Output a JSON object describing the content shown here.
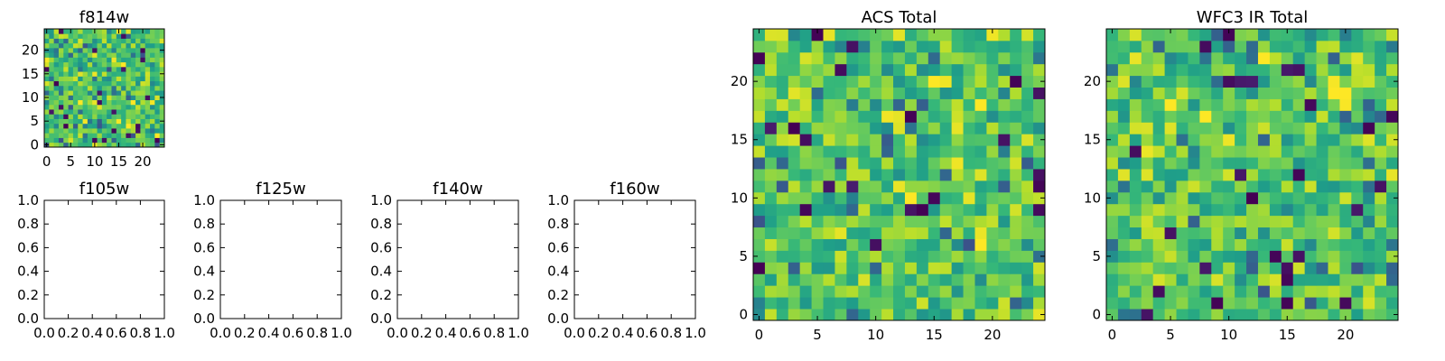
{
  "chart_data": [
    {
      "type": "heatmap",
      "title": "f814w",
      "colormap": "viridis",
      "rows": 25,
      "cols": 25,
      "seed": 814,
      "value_range": [
        0,
        1
      ],
      "xlim": [
        -0.5,
        24.5
      ],
      "ylim": [
        -0.5,
        24.5
      ],
      "xticks": [
        0,
        5,
        10,
        15,
        20
      ],
      "yticks": [
        0,
        5,
        10,
        15,
        20
      ],
      "values": []
    },
    {
      "type": "empty",
      "title": "f105w",
      "xlim": [
        0,
        1
      ],
      "ylim": [
        0,
        1
      ],
      "xticks": [
        "0.0",
        "0.2",
        "0.4",
        "0.6",
        "0.8",
        "1.0"
      ],
      "yticks": [
        "0.0",
        "0.2",
        "0.4",
        "0.6",
        "0.8",
        "1.0"
      ]
    },
    {
      "type": "empty",
      "title": "f125w",
      "xlim": [
        0,
        1
      ],
      "ylim": [
        0,
        1
      ],
      "xticks": [
        "0.0",
        "0.2",
        "0.4",
        "0.6",
        "0.8",
        "1.0"
      ],
      "yticks": [
        "0.0",
        "0.2",
        "0.4",
        "0.6",
        "0.8",
        "1.0"
      ]
    },
    {
      "type": "empty",
      "title": "f140w",
      "xlim": [
        0,
        1
      ],
      "ylim": [
        0,
        1
      ],
      "xticks": [
        "0.0",
        "0.2",
        "0.4",
        "0.6",
        "0.8",
        "1.0"
      ],
      "yticks": [
        "0.0",
        "0.2",
        "0.4",
        "0.6",
        "0.8",
        "1.0"
      ]
    },
    {
      "type": "empty",
      "title": "f160w",
      "xlim": [
        0,
        1
      ],
      "ylim": [
        0,
        1
      ],
      "xticks": [
        "0.0",
        "0.2",
        "0.4",
        "0.6",
        "0.8",
        "1.0"
      ],
      "yticks": [
        "0.0",
        "0.2",
        "0.4",
        "0.6",
        "0.8",
        "1.0"
      ]
    },
    {
      "type": "heatmap",
      "title": "ACS Total",
      "colormap": "viridis",
      "rows": 25,
      "cols": 25,
      "seed": 1001,
      "value_range": [
        0,
        1
      ],
      "xlim": [
        -0.5,
        24.5
      ],
      "ylim": [
        -0.5,
        24.5
      ],
      "xticks": [
        0,
        5,
        10,
        15,
        20
      ],
      "yticks": [
        0,
        5,
        10,
        15,
        20
      ],
      "values": []
    },
    {
      "type": "heatmap",
      "title": "WFC3 IR Total",
      "colormap": "viridis",
      "rows": 25,
      "cols": 25,
      "seed": 3003,
      "value_range": [
        0,
        1
      ],
      "xlim": [
        -0.5,
        24.5
      ],
      "ylim": [
        -0.5,
        24.5
      ],
      "xticks": [
        0,
        5,
        10,
        15,
        20
      ],
      "yticks": [
        0,
        5,
        10,
        15,
        20
      ],
      "values": []
    }
  ]
}
